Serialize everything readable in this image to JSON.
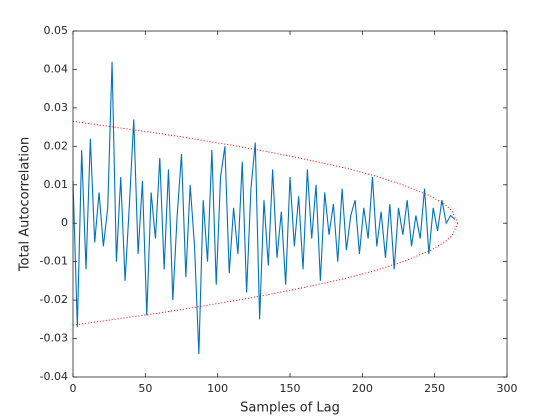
{
  "chart_data": {
    "type": "line",
    "xlabel": "Samples of Lag",
    "ylabel": "Total Autocorrelation",
    "xlim": [
      0,
      300
    ],
    "xticks": [
      0,
      50,
      100,
      150,
      200,
      250,
      300
    ],
    "ylim": [
      -0.04,
      0.05
    ],
    "yticks": [
      -0.04,
      -0.03,
      -0.02,
      -0.01,
      0,
      0.01,
      0.02,
      0.03,
      0.04,
      0.05
    ],
    "series": [
      {
        "color": "#0072bd",
        "line_style": "solid",
        "x": [
          0,
          3,
          6,
          9,
          12,
          15,
          18,
          21,
          24,
          27,
          30,
          33,
          36,
          39,
          42,
          45,
          48,
          51,
          54,
          57,
          60,
          63,
          66,
          69,
          72,
          75,
          78,
          81,
          84,
          87,
          90,
          93,
          96,
          99,
          102,
          105,
          108,
          111,
          114,
          117,
          120,
          123,
          126,
          129,
          132,
          135,
          138,
          141,
          144,
          147,
          150,
          153,
          156,
          159,
          162,
          165,
          168,
          171,
          174,
          177,
          180,
          183,
          186,
          189,
          192,
          195,
          198,
          201,
          204,
          207,
          210,
          213,
          216,
          219,
          222,
          225,
          228,
          231,
          234,
          237,
          240,
          243,
          246,
          249,
          252,
          255,
          258,
          261,
          264
        ],
        "values": [
          0.011,
          -0.027,
          0.019,
          -0.012,
          0.022,
          -0.005,
          0.008,
          -0.006,
          0.004,
          0.042,
          -0.01,
          0.012,
          -0.015,
          0.005,
          0.027,
          -0.008,
          0.011,
          -0.024,
          0.008,
          -0.004,
          0.017,
          -0.012,
          0.014,
          -0.02,
          0.002,
          0.018,
          -0.014,
          0.01,
          -0.006,
          -0.034,
          0.006,
          -0.01,
          0.019,
          -0.016,
          0.012,
          0.02,
          -0.013,
          0.004,
          -0.008,
          0.016,
          -0.018,
          0.009,
          0.021,
          -0.025,
          0.006,
          -0.011,
          0.014,
          -0.009,
          0.003,
          -0.016,
          0.012,
          -0.006,
          0.007,
          -0.012,
          0.014,
          -0.004,
          0.01,
          -0.015,
          0.008,
          -0.003,
          0.005,
          -0.01,
          0.009,
          -0.007,
          0.002,
          0.006,
          -0.008,
          0.004,
          -0.004,
          0.012,
          -0.006,
          0.003,
          -0.009,
          0.005,
          -0.012,
          0.004,
          -0.003,
          0.006,
          -0.006,
          0.002,
          -0.004,
          0.009,
          -0.008,
          0.004,
          -0.002,
          0.006,
          0.0,
          0.002,
          0.001
        ]
      },
      {
        "color": "#ff0000",
        "line_style": "dotted",
        "x": [
          0,
          19,
          38,
          57,
          76,
          95,
          114,
          133,
          152,
          171,
          190,
          209,
          228,
          247,
          257,
          262,
          266
        ],
        "values": [
          0.0265,
          0.0255,
          0.0245,
          0.0235,
          0.0224,
          0.0212,
          0.02,
          0.0187,
          0.0173,
          0.0158,
          0.0142,
          0.0123,
          0.01,
          0.0071,
          0.0049,
          0.0032,
          0
        ]
      },
      {
        "color": "#ff0000",
        "line_style": "dotted",
        "x": [
          0,
          19,
          38,
          57,
          76,
          95,
          114,
          133,
          152,
          171,
          190,
          209,
          228,
          247,
          257,
          262,
          266
        ],
        "values": [
          -0.0265,
          -0.0255,
          -0.0245,
          -0.0235,
          -0.0224,
          -0.0212,
          -0.02,
          -0.0187,
          -0.0173,
          -0.0158,
          -0.0142,
          -0.0123,
          -0.01,
          -0.0071,
          -0.0049,
          -0.0032,
          0
        ]
      }
    ]
  }
}
